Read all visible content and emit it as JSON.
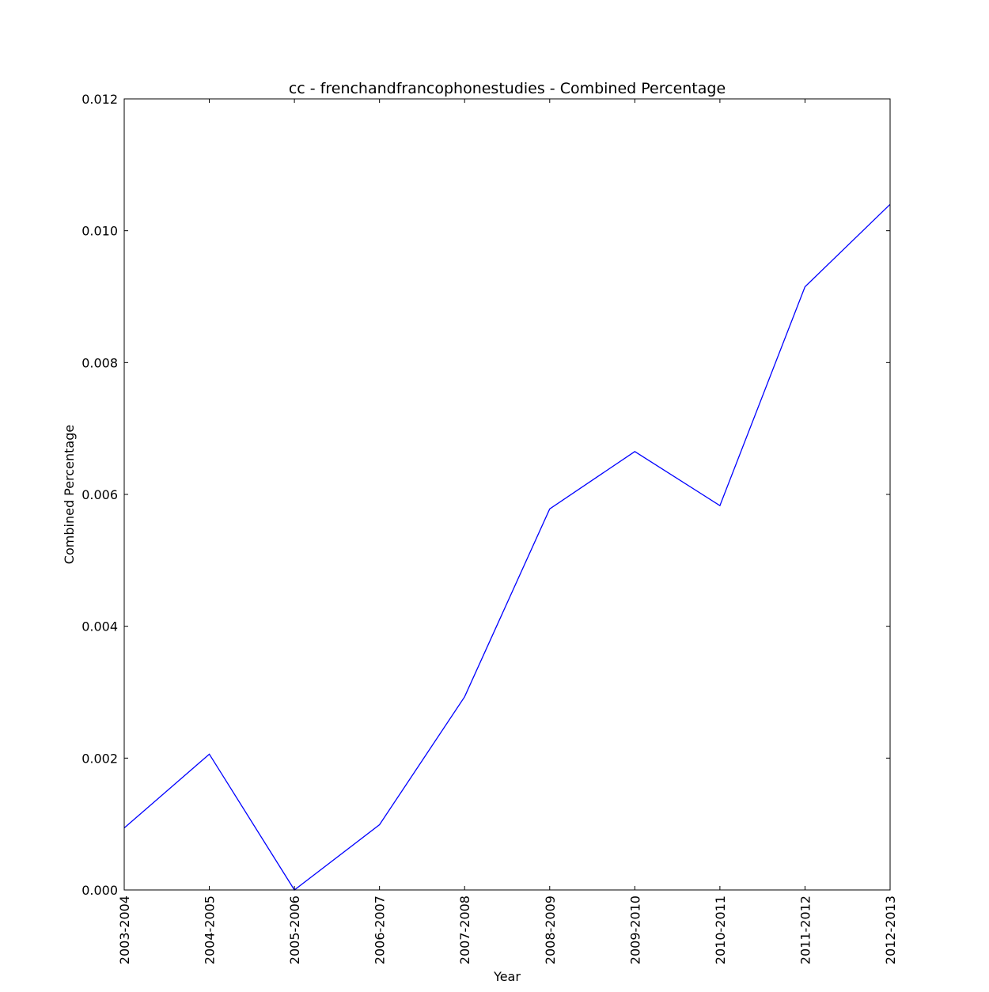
{
  "chart_data": {
    "type": "line",
    "title": "cc - frenchandfrancophonestudies - Combined Percentage",
    "xlabel": "Year",
    "ylabel": "Combined Percentage",
    "categories": [
      "2003-2004",
      "2004-2005",
      "2005-2006",
      "2006-2007",
      "2007-2008",
      "2008-2009",
      "2009-2010",
      "2010-2011",
      "2011-2012",
      "2012-2013"
    ],
    "series": [
      {
        "values": [
          0.00094,
          0.00206,
          0.0,
          0.00099,
          0.00293,
          0.00578,
          0.00665,
          0.00583,
          0.00915,
          0.0104
        ]
      }
    ],
    "ylim": [
      0,
      0.012
    ],
    "yticks": [
      "0.000",
      "0.002",
      "0.004",
      "0.006",
      "0.008",
      "0.010",
      "0.012"
    ],
    "grid": false,
    "colors": {
      "line": "#0000ff",
      "axes": "#000000",
      "background": "#ffffff"
    }
  }
}
